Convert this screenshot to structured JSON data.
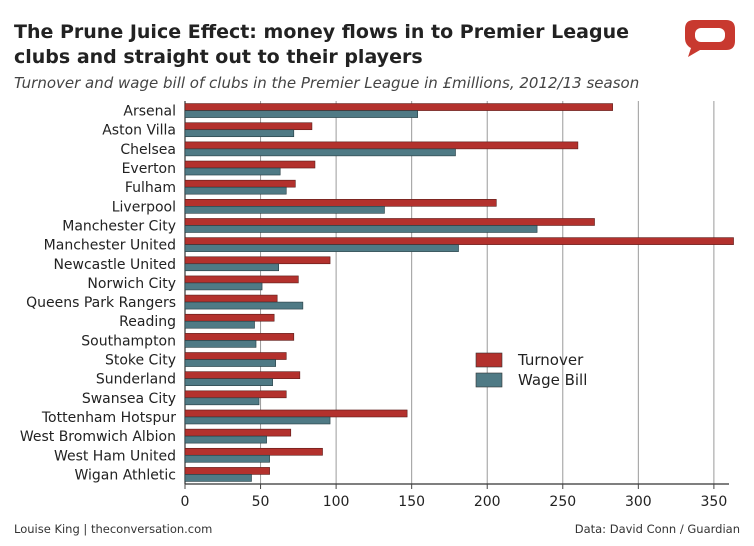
{
  "title": "The Prune Juice Effect: money flows in to Premier League clubs and straight out to their players",
  "subtitle": "Turnover and wage bill of clubs in the Premier League in £millions, 2012/13 season",
  "credit_left": "Louise King | theconversation.com",
  "credit_right": "Data: David Conn / Guardian",
  "colors": {
    "turnover": "#b3312d",
    "wage_bill": "#4f7a85",
    "logo": "#c8392f",
    "grid": "#9a9a9a"
  },
  "chart_data": {
    "type": "bar",
    "orientation": "horizontal",
    "categories": [
      "Arsenal",
      "Aston Villa",
      "Chelsea",
      "Everton",
      "Fulham",
      "Liverpool",
      "Manchester City",
      "Manchester United",
      "Newcastle United",
      "Norwich City",
      "Queens Park Rangers",
      "Reading",
      "Southampton",
      "Stoke City",
      "Sunderland",
      "Swansea City",
      "Tottenham Hotspur",
      "West Bromwich Albion",
      "West Ham United",
      "Wigan Athletic"
    ],
    "series": [
      {
        "name": "Turnover",
        "values": [
          283,
          84,
          260,
          86,
          73,
          206,
          271,
          363,
          96,
          75,
          61,
          59,
          72,
          67,
          76,
          67,
          147,
          70,
          91,
          56
        ]
      },
      {
        "name": "Wage Bill",
        "values": [
          154,
          72,
          179,
          63,
          67,
          132,
          233,
          181,
          62,
          51,
          78,
          46,
          47,
          60,
          58,
          49,
          96,
          54,
          56,
          44
        ]
      }
    ],
    "xlim": [
      0,
      360
    ],
    "xticks": [
      0,
      50,
      100,
      150,
      200,
      250,
      300,
      350
    ],
    "grid": true,
    "legend_position": "center-right"
  }
}
